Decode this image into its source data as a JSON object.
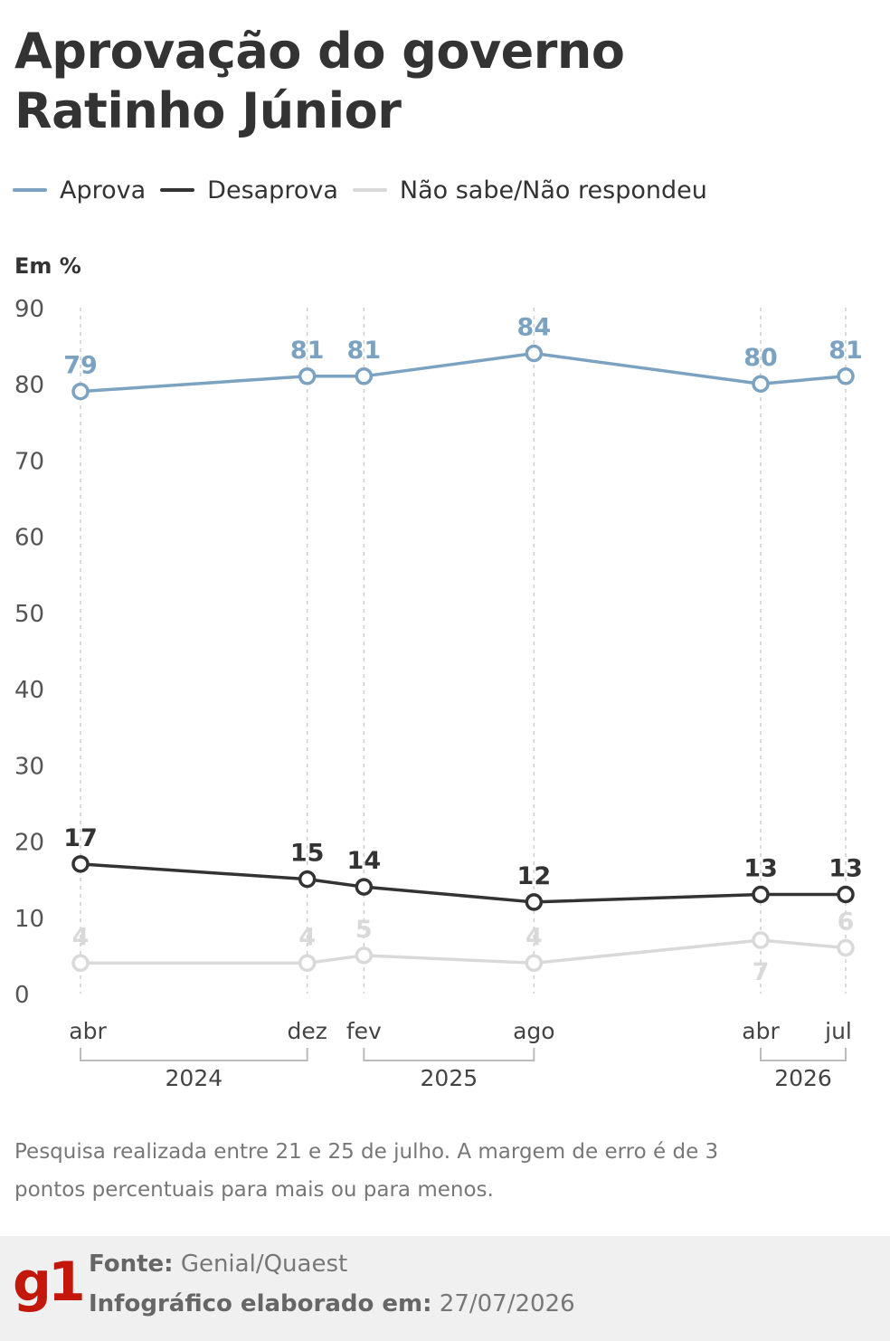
{
  "header": {
    "title_line1": "Aprovação do governo",
    "title_line2": "Ratinho Júnior"
  },
  "legend": [
    {
      "label": "Aprova",
      "color": "#7ba3c1"
    },
    {
      "label": "Desaprova",
      "color": "#333333"
    },
    {
      "label": "Não sabe/Não respondeu",
      "color": "#d9d9d9"
    }
  ],
  "unit_label": "Em %",
  "chart_data": {
    "type": "line",
    "x": [
      "abr",
      "dez",
      "fev",
      "ago",
      "abr",
      "jul"
    ],
    "x_dates": [
      "2024-04",
      "2024-12",
      "2025-02",
      "2025-08",
      "2026-04",
      "2026-07"
    ],
    "year_groups": [
      {
        "label": "2024",
        "from": 0,
        "to": 1
      },
      {
        "label": "2025",
        "from": 2,
        "to": 3
      },
      {
        "label": "2026",
        "from": 4,
        "to": 5
      }
    ],
    "ylim": [
      0,
      90
    ],
    "yticks": [
      "0",
      "10",
      "20",
      "30",
      "40",
      "50",
      "60",
      "70",
      "80",
      "90"
    ],
    "grid": "vertical dashed at each survey date",
    "series": [
      {
        "name": "Aprova",
        "color": "#7ba3c1",
        "values": [
          79,
          81,
          81,
          84,
          80,
          81
        ]
      },
      {
        "name": "Desaprova",
        "color": "#333333",
        "values": [
          17,
          15,
          14,
          12,
          13,
          13
        ]
      },
      {
        "name": "Não sabe/Não respondeu",
        "color": "#d9d9d9",
        "values": [
          4,
          4,
          5,
          4,
          7,
          6
        ]
      }
    ]
  },
  "note": "Pesquisa realizada entre 21 e 25 de julho. A margem de erro é de 3 pontos percentuais para mais ou para menos.",
  "footer": {
    "logo": "g1",
    "source_label": "Fonte:",
    "source_value": "Genial/Quaest",
    "date_label": "Infográfico elaborado em:",
    "date_value": "27/07/2026"
  }
}
